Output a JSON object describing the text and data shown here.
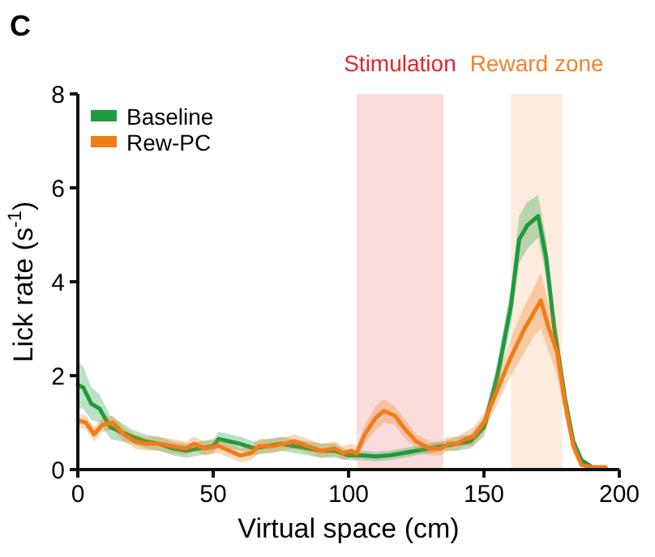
{
  "chart_data": {
    "type": "line",
    "title": "C",
    "xlabel": "Virtual space (cm)",
    "ylabel": "Lick rate (s$^{-1}$)",
    "xlim": [
      0,
      200
    ],
    "xticks": [
      0,
      50,
      100,
      150,
      200
    ],
    "ylim": [
      0,
      8
    ],
    "yticks": [
      0,
      2,
      4,
      6,
      8
    ],
    "grid": false,
    "legend": "top left",
    "bands": [
      {
        "axis": "x",
        "from": 103,
        "to": 135,
        "label": "Stimulation",
        "color": "#e3262b"
      },
      {
        "axis": "x",
        "from": 160,
        "to": 179,
        "label": "Reward zone",
        "color": "#f5822a"
      }
    ],
    "series": [
      {
        "name": "Baseline",
        "color": "#1f9a3e",
        "x": [
          0,
          2,
          5,
          8,
          12,
          16,
          20,
          25,
          30,
          35,
          40,
          45,
          50,
          52,
          56,
          60,
          65,
          70,
          75,
          80,
          85,
          90,
          95,
          100,
          105,
          110,
          115,
          120,
          125,
          130,
          135,
          140,
          145,
          150,
          155,
          160,
          163,
          166,
          170,
          173,
          176,
          180,
          183,
          186,
          190,
          195
        ],
        "values": [
          1.8,
          1.75,
          1.4,
          1.3,
          0.9,
          0.8,
          0.7,
          0.6,
          0.55,
          0.45,
          0.4,
          0.45,
          0.5,
          0.65,
          0.6,
          0.55,
          0.45,
          0.5,
          0.55,
          0.5,
          0.45,
          0.4,
          0.4,
          0.3,
          0.3,
          0.28,
          0.3,
          0.35,
          0.4,
          0.45,
          0.5,
          0.55,
          0.6,
          0.9,
          2.0,
          3.5,
          4.9,
          5.2,
          5.4,
          4.5,
          3.0,
          1.5,
          0.6,
          0.2,
          0.05,
          null
        ],
        "lower": [
          1.3,
          1.3,
          1.05,
          1.0,
          0.65,
          0.6,
          0.55,
          0.45,
          0.4,
          0.3,
          0.25,
          0.3,
          0.35,
          0.5,
          0.45,
          0.4,
          0.3,
          0.35,
          0.4,
          0.35,
          0.3,
          0.25,
          0.25,
          0.2,
          0.2,
          0.18,
          0.2,
          0.25,
          0.3,
          0.35,
          0.4,
          0.4,
          0.45,
          0.7,
          1.7,
          3.1,
          4.4,
          4.7,
          4.95,
          4.1,
          2.7,
          1.3,
          0.5,
          0.15,
          0.02,
          0.02
        ],
        "upper": [
          2.3,
          2.2,
          1.75,
          1.6,
          1.15,
          1.0,
          0.85,
          0.75,
          0.7,
          0.6,
          0.55,
          0.6,
          0.65,
          0.8,
          0.75,
          0.7,
          0.6,
          0.65,
          0.7,
          0.65,
          0.6,
          0.55,
          0.55,
          0.4,
          0.4,
          0.38,
          0.4,
          0.45,
          0.5,
          0.55,
          0.6,
          0.7,
          0.75,
          1.1,
          2.3,
          3.9,
          5.4,
          5.7,
          5.85,
          4.9,
          3.3,
          1.7,
          0.7,
          0.25,
          0.08,
          0.08
        ]
      },
      {
        "name": "Rew-PC",
        "color": "#f07d1a",
        "x": [
          0,
          3,
          6,
          9,
          13,
          17,
          21,
          25,
          30,
          35,
          40,
          43,
          47,
          52,
          56,
          60,
          64,
          67,
          72,
          76,
          80,
          85,
          90,
          95,
          98,
          101,
          103,
          106,
          110,
          113,
          117,
          121,
          125,
          130,
          134,
          137,
          140,
          143,
          146,
          150,
          155,
          160,
          165,
          168,
          171,
          174,
          177,
          180,
          183,
          186,
          190,
          195
        ],
        "values": [
          1.05,
          1.0,
          0.75,
          0.95,
          1.0,
          0.75,
          0.6,
          0.55,
          0.55,
          0.5,
          0.45,
          0.55,
          0.45,
          0.5,
          0.4,
          0.3,
          0.35,
          0.5,
          0.5,
          0.55,
          0.6,
          0.5,
          0.4,
          0.45,
          0.35,
          0.4,
          0.35,
          0.75,
          1.1,
          1.25,
          1.15,
          0.85,
          0.6,
          0.45,
          0.45,
          0.55,
          0.55,
          0.65,
          0.7,
          1.0,
          1.7,
          2.4,
          3.0,
          3.3,
          3.6,
          3.0,
          2.5,
          1.4,
          0.5,
          0.1,
          0.05,
          0.05
        ],
        "lower": [
          0.9,
          0.85,
          0.6,
          0.8,
          0.85,
          0.6,
          0.45,
          0.4,
          0.4,
          0.35,
          0.3,
          0.4,
          0.3,
          0.35,
          0.25,
          0.15,
          0.2,
          0.35,
          0.35,
          0.4,
          0.45,
          0.35,
          0.25,
          0.3,
          0.2,
          0.25,
          0.2,
          0.55,
          0.85,
          1.0,
          0.95,
          0.65,
          0.45,
          0.3,
          0.3,
          0.4,
          0.4,
          0.5,
          0.5,
          0.8,
          1.4,
          2.0,
          2.5,
          2.8,
          3.0,
          2.5,
          2.0,
          1.1,
          0.35,
          0.05,
          0.02,
          0.02
        ],
        "upper": [
          1.2,
          1.15,
          0.9,
          1.1,
          1.15,
          0.9,
          0.75,
          0.7,
          0.7,
          0.65,
          0.6,
          0.7,
          0.6,
          0.65,
          0.55,
          0.45,
          0.5,
          0.65,
          0.65,
          0.7,
          0.75,
          0.65,
          0.55,
          0.6,
          0.5,
          0.55,
          0.5,
          0.95,
          1.35,
          1.5,
          1.35,
          1.05,
          0.75,
          0.6,
          0.6,
          0.7,
          0.7,
          0.8,
          0.9,
          1.2,
          2.0,
          2.8,
          3.5,
          3.8,
          4.2,
          3.5,
          3.0,
          1.7,
          0.65,
          0.15,
          0.08,
          0.08
        ]
      }
    ]
  }
}
